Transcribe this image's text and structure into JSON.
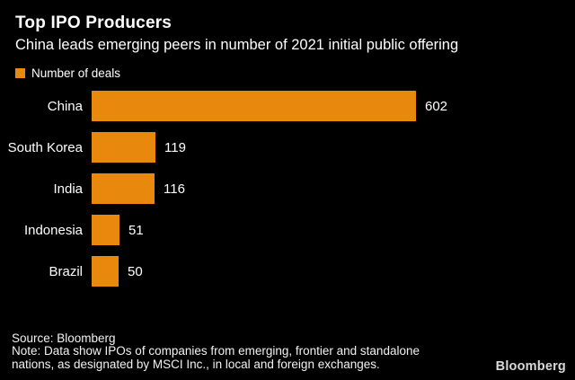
{
  "header": {
    "title": "Top IPO Producers",
    "subtitle": "China leads emerging peers in number of 2021 initial public offering"
  },
  "legend": {
    "label": "Number of deals"
  },
  "chart_data": {
    "type": "bar",
    "orientation": "horizontal",
    "title": "Top IPO Producers",
    "subtitle": "China leads emerging peers in number of 2021 initial public offering",
    "series_label": "Number of deals",
    "categories": [
      "China",
      "South Korea",
      "India",
      "Indonesia",
      "Brazil"
    ],
    "values": [
      602,
      119,
      116,
      51,
      50
    ],
    "value_labels_shown": true,
    "xlim": [
      0,
      602
    ],
    "grid": false,
    "legend_position": "top-left"
  },
  "colors": {
    "background": "#000000",
    "text": "#ffffff",
    "accent": "#E8890D",
    "footer_text": "#f2f2f2",
    "brand_text": "#d9d9d9"
  },
  "footer": {
    "source": "Source: Bloomberg",
    "note_line1": "Note: Data show IPOs of companies from emerging, frontier and standalone",
    "note_line2": "nations, as designated by MSCI Inc., in local and foreign exchanges.",
    "brand": "Bloomberg"
  }
}
